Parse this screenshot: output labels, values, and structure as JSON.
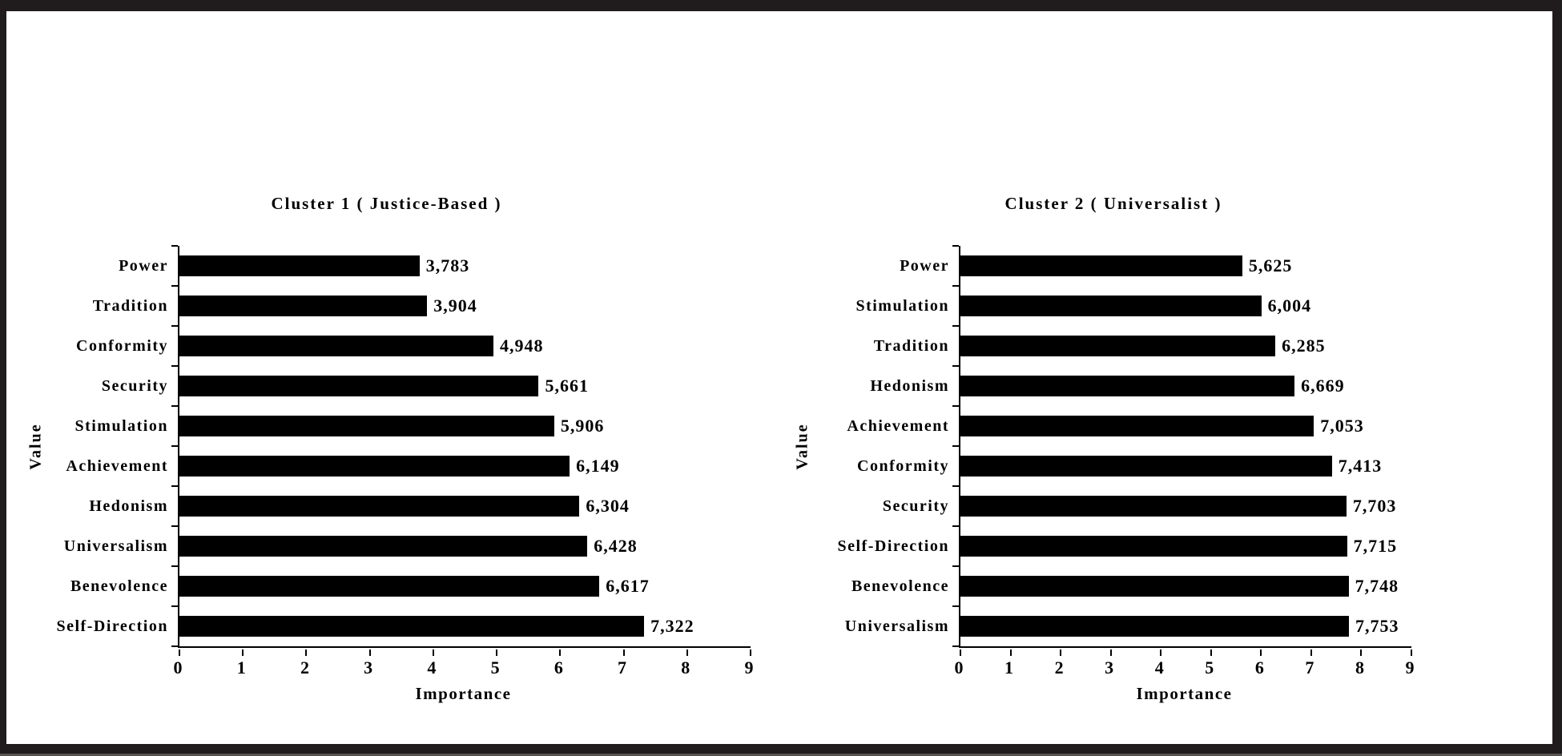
{
  "page": {
    "background": "#ffffff",
    "frame_color": "#201c1d",
    "bar_color": "#000000"
  },
  "chart_data": [
    {
      "type": "bar",
      "orientation": "horizontal",
      "title": "Cluster 1 ( Justice-Based )",
      "xlabel": "Importance",
      "ylabel": "Value",
      "xlim": [
        0,
        9
      ],
      "xticks": [
        0,
        1,
        2,
        3,
        4,
        5,
        6,
        7,
        8,
        9
      ],
      "grid": false,
      "legend": false,
      "bar_color": "#000000",
      "categories": [
        "Power",
        "Tradition",
        "Conformity",
        "Security",
        "Stimulation",
        "Achievement",
        "Hedonism",
        "Universalism",
        "Benevolence",
        "Self-Direction"
      ],
      "values": [
        3.783,
        3.904,
        4.948,
        5.661,
        5.906,
        6.149,
        6.304,
        6.428,
        6.617,
        7.322
      ],
      "value_labels": [
        "3,783",
        "3,904",
        "4,948",
        "5,661",
        "5,906",
        "6,149",
        "6,304",
        "6,428",
        "6,617",
        "7,322"
      ]
    },
    {
      "type": "bar",
      "orientation": "horizontal",
      "title": "Cluster 2 ( Universalist )",
      "xlabel": "Importance",
      "ylabel": "Value",
      "xlim": [
        0,
        9
      ],
      "xticks": [
        0,
        1,
        2,
        3,
        4,
        5,
        6,
        7,
        8,
        9
      ],
      "grid": false,
      "legend": false,
      "bar_color": "#000000",
      "categories": [
        "Power",
        "Stimulation",
        "Tradition",
        "Hedonism",
        "Achievement",
        "Conformity",
        "Security",
        "Self-Direction",
        "Benevolence",
        "Universalism"
      ],
      "values": [
        5.625,
        6.004,
        6.285,
        6.669,
        7.053,
        7.413,
        7.703,
        7.715,
        7.748,
        7.753
      ],
      "value_labels": [
        "5,625",
        "6,004",
        "6,285",
        "6,669",
        "7,053",
        "7,413",
        "7,703",
        "7,715",
        "7,748",
        "7,753"
      ]
    }
  ]
}
